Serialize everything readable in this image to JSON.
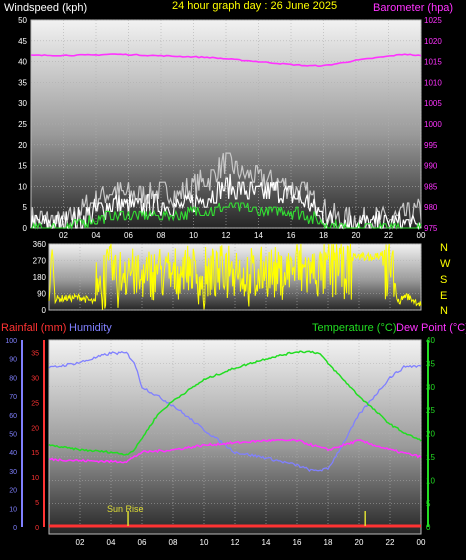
{
  "header": {
    "left": "Windspeed (kph)",
    "center": "24 hour graph day : 26 June 2025",
    "right": "Barometer (hpa)"
  },
  "mid": {
    "compass": [
      "N",
      "W",
      "S",
      "E",
      "N"
    ]
  },
  "bottom": {
    "rain_label": "Rainfall (mm)",
    "hum_label": "Humidity",
    "temp_label": "Temperature (°C)",
    "dew_label": "Dew Point (°C)",
    "sunrise_label": "Sun Rise"
  },
  "colors": {
    "wind": "#ffffff",
    "gust": "#c8c8c8",
    "avg": "#33dd33",
    "baro": "#ff33ff",
    "dir": "#ffff00",
    "humidity": "#8080ff",
    "temp": "#22dd22",
    "dew": "#ff33ff",
    "rain": "#ff3333",
    "sun": "#dddd33"
  },
  "chart_data": [
    {
      "type": "line",
      "title": "24 hour graph day : 26 June 2025",
      "xticks": [
        "02",
        "04",
        "06",
        "08",
        "10",
        "12",
        "14",
        "16",
        "18",
        "20",
        "22",
        "00"
      ],
      "y_left": {
        "label": "Windspeed (kph)",
        "ticks": [
          0,
          5,
          10,
          15,
          20,
          25,
          30,
          35,
          40,
          45,
          50
        ]
      },
      "y_right": {
        "label": "Barometer (hpa)",
        "ticks": [
          975,
          980,
          985,
          990,
          995,
          1000,
          1005,
          1010,
          1015,
          1020,
          1025
        ]
      },
      "series": [
        {
          "name": "Barometer (hpa)",
          "x": [
            0,
            2,
            4,
            5,
            8,
            11,
            14,
            16,
            17,
            18,
            19,
            20,
            22,
            23,
            24
          ],
          "values": [
            1016.5,
            1016.5,
            1016.6,
            1016.8,
            1016.4,
            1016,
            1015,
            1014.3,
            1014,
            1014,
            1014.6,
            1015.3,
            1016.3,
            1016.8,
            1016.4
          ]
        },
        {
          "name": "Windspeed (kph)",
          "x": [
            0,
            1,
            2,
            3,
            4,
            5,
            6,
            7,
            8,
            9,
            10,
            11,
            12,
            13,
            14,
            15,
            16,
            17,
            18,
            19,
            20,
            21,
            22,
            23,
            24
          ],
          "values": [
            1,
            1,
            1,
            2,
            4,
            6,
            5,
            5,
            6,
            5,
            6,
            8,
            10,
            9,
            8,
            9,
            8,
            6,
            3,
            1,
            1,
            1,
            1,
            1,
            0
          ]
        },
        {
          "name": "Gust",
          "x": [
            0,
            1,
            2,
            3,
            4,
            5,
            6,
            7,
            8,
            9,
            10,
            11,
            12,
            13,
            14,
            15,
            16,
            17,
            18,
            19,
            20,
            21,
            22,
            23,
            24
          ],
          "values": [
            2,
            2,
            1,
            4,
            7,
            9,
            8,
            8,
            9,
            8,
            10,
            12,
            16,
            13,
            12,
            11,
            10,
            8,
            4,
            2,
            2,
            2,
            2,
            3,
            4
          ]
        },
        {
          "name": "Average",
          "x": [
            0,
            1,
            2,
            3,
            4,
            5,
            6,
            7,
            8,
            9,
            10,
            11,
            12,
            13,
            14,
            15,
            16,
            17,
            18,
            19,
            20,
            21,
            22,
            23,
            24
          ],
          "values": [
            0,
            0,
            0,
            1,
            2,
            3,
            3,
            3,
            3,
            3,
            4,
            4,
            5,
            5,
            4,
            4,
            4,
            3,
            1,
            0,
            0,
            0,
            0,
            0,
            0
          ]
        }
      ]
    },
    {
      "type": "line",
      "y_ticks": [
        0,
        90,
        180,
        270,
        360
      ],
      "series": [
        {
          "name": "Wind direction",
          "x": [
            0,
            0.2,
            0.4,
            2,
            3,
            3.5,
            4,
            4.5,
            5,
            6,
            7,
            8,
            9,
            10,
            11,
            12,
            13,
            14,
            15,
            16,
            17,
            18,
            19,
            20,
            21,
            22,
            22.5,
            23,
            24
          ],
          "values": [
            40,
            350,
            60,
            70,
            40,
            90,
            260,
            120,
            300,
            80,
            240,
            150,
            280,
            90,
            220,
            300,
            80,
            250,
            180,
            280,
            220,
            280,
            290,
            300,
            250,
            330,
            40,
            80,
            30
          ]
        }
      ]
    },
    {
      "type": "line",
      "y_left_ticks": [
        0,
        5,
        10,
        15,
        20,
        25,
        30,
        35
      ],
      "y_humidity_ticks": [
        0,
        10,
        20,
        30,
        40,
        50,
        60,
        70,
        80,
        90,
        100
      ],
      "y_right_ticks": [
        0,
        5,
        10,
        15,
        20,
        25,
        30,
        35,
        40
      ],
      "series": [
        {
          "name": "Temperature (°C)",
          "x": [
            0,
            2,
            4,
            5,
            5.5,
            6,
            7,
            8,
            10,
            12,
            14,
            16,
            17,
            17.5,
            18,
            19,
            20,
            21,
            22,
            23,
            24
          ],
          "values": [
            17.5,
            16.5,
            16,
            15.5,
            16.5,
            19,
            24,
            27,
            31.5,
            34,
            36,
            37.5,
            37.5,
            37,
            35,
            31.5,
            28,
            25,
            22,
            20,
            18.5
          ]
        },
        {
          "name": "Dew Point (°C)",
          "x": [
            0,
            2,
            4,
            5,
            6,
            8,
            10,
            12,
            14,
            16,
            18,
            20,
            22,
            24
          ],
          "values": [
            14.5,
            14.2,
            14,
            14,
            16,
            16.5,
            17.5,
            18,
            18.5,
            18.5,
            16.5,
            18.5,
            16.5,
            15
          ]
        },
        {
          "name": "Humidity",
          "x": [
            0,
            2,
            4,
            5,
            5.5,
            6,
            8,
            10,
            12,
            14,
            16,
            17,
            18,
            19,
            20,
            21,
            22,
            23,
            24
          ],
          "values": [
            85,
            88,
            93,
            93,
            88,
            75,
            65,
            52,
            40,
            37,
            33,
            30,
            31,
            45,
            60,
            70,
            80,
            86,
            86
          ]
        },
        {
          "name": "Rainfall (mm)",
          "x": [
            0,
            24
          ],
          "values": [
            0,
            0
          ]
        }
      ],
      "markers": [
        {
          "x": 5.1,
          "label": "Sun Rise"
        },
        {
          "x": 20.4,
          "label": ""
        }
      ]
    }
  ]
}
